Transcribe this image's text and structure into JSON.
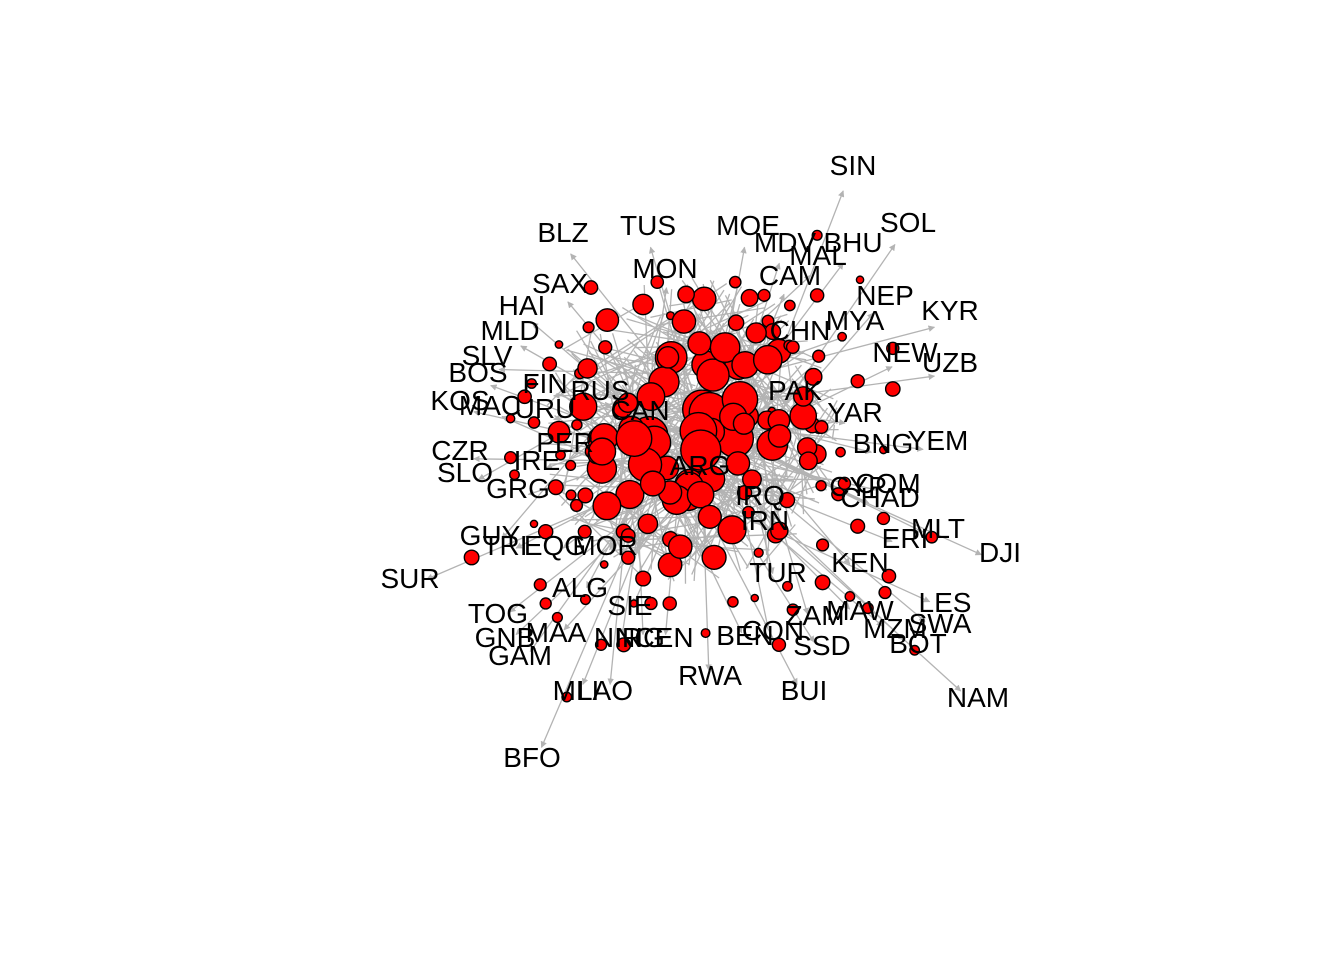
{
  "diagram": {
    "type": "network-graph",
    "node_color": "#ff0000",
    "node_border": "#000000",
    "edge_color": "#b3b3b3",
    "label_color": "#000000",
    "directed": true,
    "nodes": [
      {
        "id": "SIN",
        "label": "SIN"
      },
      {
        "id": "SOL",
        "label": "SOL"
      },
      {
        "id": "BHU",
        "label": "BHU"
      },
      {
        "id": "MAL",
        "label": "MAL"
      },
      {
        "id": "MDV",
        "label": "MDV"
      },
      {
        "id": "MOE",
        "label": "MOE"
      },
      {
        "id": "TUS",
        "label": "TUS"
      },
      {
        "id": "BLZ",
        "label": "BLZ"
      },
      {
        "id": "MON",
        "label": "MON"
      },
      {
        "id": "SAX",
        "label": "SAX"
      },
      {
        "id": "HAI",
        "label": "HAI"
      },
      {
        "id": "MLD",
        "label": "MLD"
      },
      {
        "id": "SLV",
        "label": "SLV"
      },
      {
        "id": "BOS",
        "label": "BOS"
      },
      {
        "id": "KOS",
        "label": "KOS"
      },
      {
        "id": "MAC",
        "label": "MAC"
      },
      {
        "id": "URU",
        "label": "URU"
      },
      {
        "id": "FIN",
        "label": "FIN"
      },
      {
        "id": "CZR",
        "label": "CZR"
      },
      {
        "id": "SLO",
        "label": "SLO"
      },
      {
        "id": "IRE",
        "label": "IRE"
      },
      {
        "id": "PER",
        "label": "PER"
      },
      {
        "id": "GRG",
        "label": "GRG"
      },
      {
        "id": "GUY",
        "label": "GUY"
      },
      {
        "id": "TRI",
        "label": "TRI"
      },
      {
        "id": "EQG",
        "label": "EQG"
      },
      {
        "id": "MOR",
        "label": "MOR"
      },
      {
        "id": "SUR",
        "label": "SUR"
      },
      {
        "id": "ALG",
        "label": "ALG"
      },
      {
        "id": "TOG",
        "label": "TOG"
      },
      {
        "id": "GNB",
        "label": "GNB"
      },
      {
        "id": "MAA",
        "label": "MAA"
      },
      {
        "id": "GAM",
        "label": "GAM"
      },
      {
        "id": "SIE",
        "label": "SIE"
      },
      {
        "id": "NIR",
        "label": "NIR"
      },
      {
        "id": "NIG",
        "label": "NIG"
      },
      {
        "id": "CEN",
        "label": "CEN"
      },
      {
        "id": "MLI",
        "label": "MLI"
      },
      {
        "id": "LAO",
        "label": "LAO"
      },
      {
        "id": "BFO",
        "label": "BFO"
      },
      {
        "id": "RWA",
        "label": "RWA"
      },
      {
        "id": "BEN",
        "label": "BEN"
      },
      {
        "id": "CON",
        "label": "CON"
      },
      {
        "id": "SSD",
        "label": "SSD"
      },
      {
        "id": "BUI",
        "label": "BUI"
      },
      {
        "id": "ZAM",
        "label": "ZAM"
      },
      {
        "id": "MAW",
        "label": "MAW"
      },
      {
        "id": "MZM",
        "label": "MZM"
      },
      {
        "id": "SWA",
        "label": "SWA"
      },
      {
        "id": "LES",
        "label": "LES"
      },
      {
        "id": "BOT",
        "label": "BOT"
      },
      {
        "id": "NAM",
        "label": "NAM"
      },
      {
        "id": "DJI",
        "label": "DJI"
      },
      {
        "id": "MLT",
        "label": "MLT"
      },
      {
        "id": "ERI",
        "label": "ERI"
      },
      {
        "id": "KEN",
        "label": "KEN"
      },
      {
        "id": "TUR",
        "label": "TUR"
      },
      {
        "id": "COM",
        "label": "COM"
      },
      {
        "id": "CYP",
        "label": "CYP"
      },
      {
        "id": "CHAD",
        "label": "CHAD"
      },
      {
        "id": "YEM",
        "label": "YEM"
      },
      {
        "id": "BNG",
        "label": "BNG"
      },
      {
        "id": "YAR",
        "label": "YAR"
      },
      {
        "id": "MYA",
        "label": "MYA"
      },
      {
        "id": "NEW",
        "label": "NEW"
      },
      {
        "id": "UZB",
        "label": "UZB"
      },
      {
        "id": "KYR",
        "label": "KYR"
      },
      {
        "id": "NEP",
        "label": "NEP"
      },
      {
        "id": "CHN",
        "label": "CHN"
      },
      {
        "id": "CAM",
        "label": "CAM"
      },
      {
        "id": "PAK",
        "label": "PAK"
      },
      {
        "id": "ARG",
        "label": "ARG"
      },
      {
        "id": "CAN",
        "label": "CAN"
      },
      {
        "id": "RUS",
        "label": "RUS"
      },
      {
        "id": "IRN",
        "label": "IRN"
      },
      {
        "id": "IRQ",
        "label": "IRQ"
      }
    ]
  }
}
